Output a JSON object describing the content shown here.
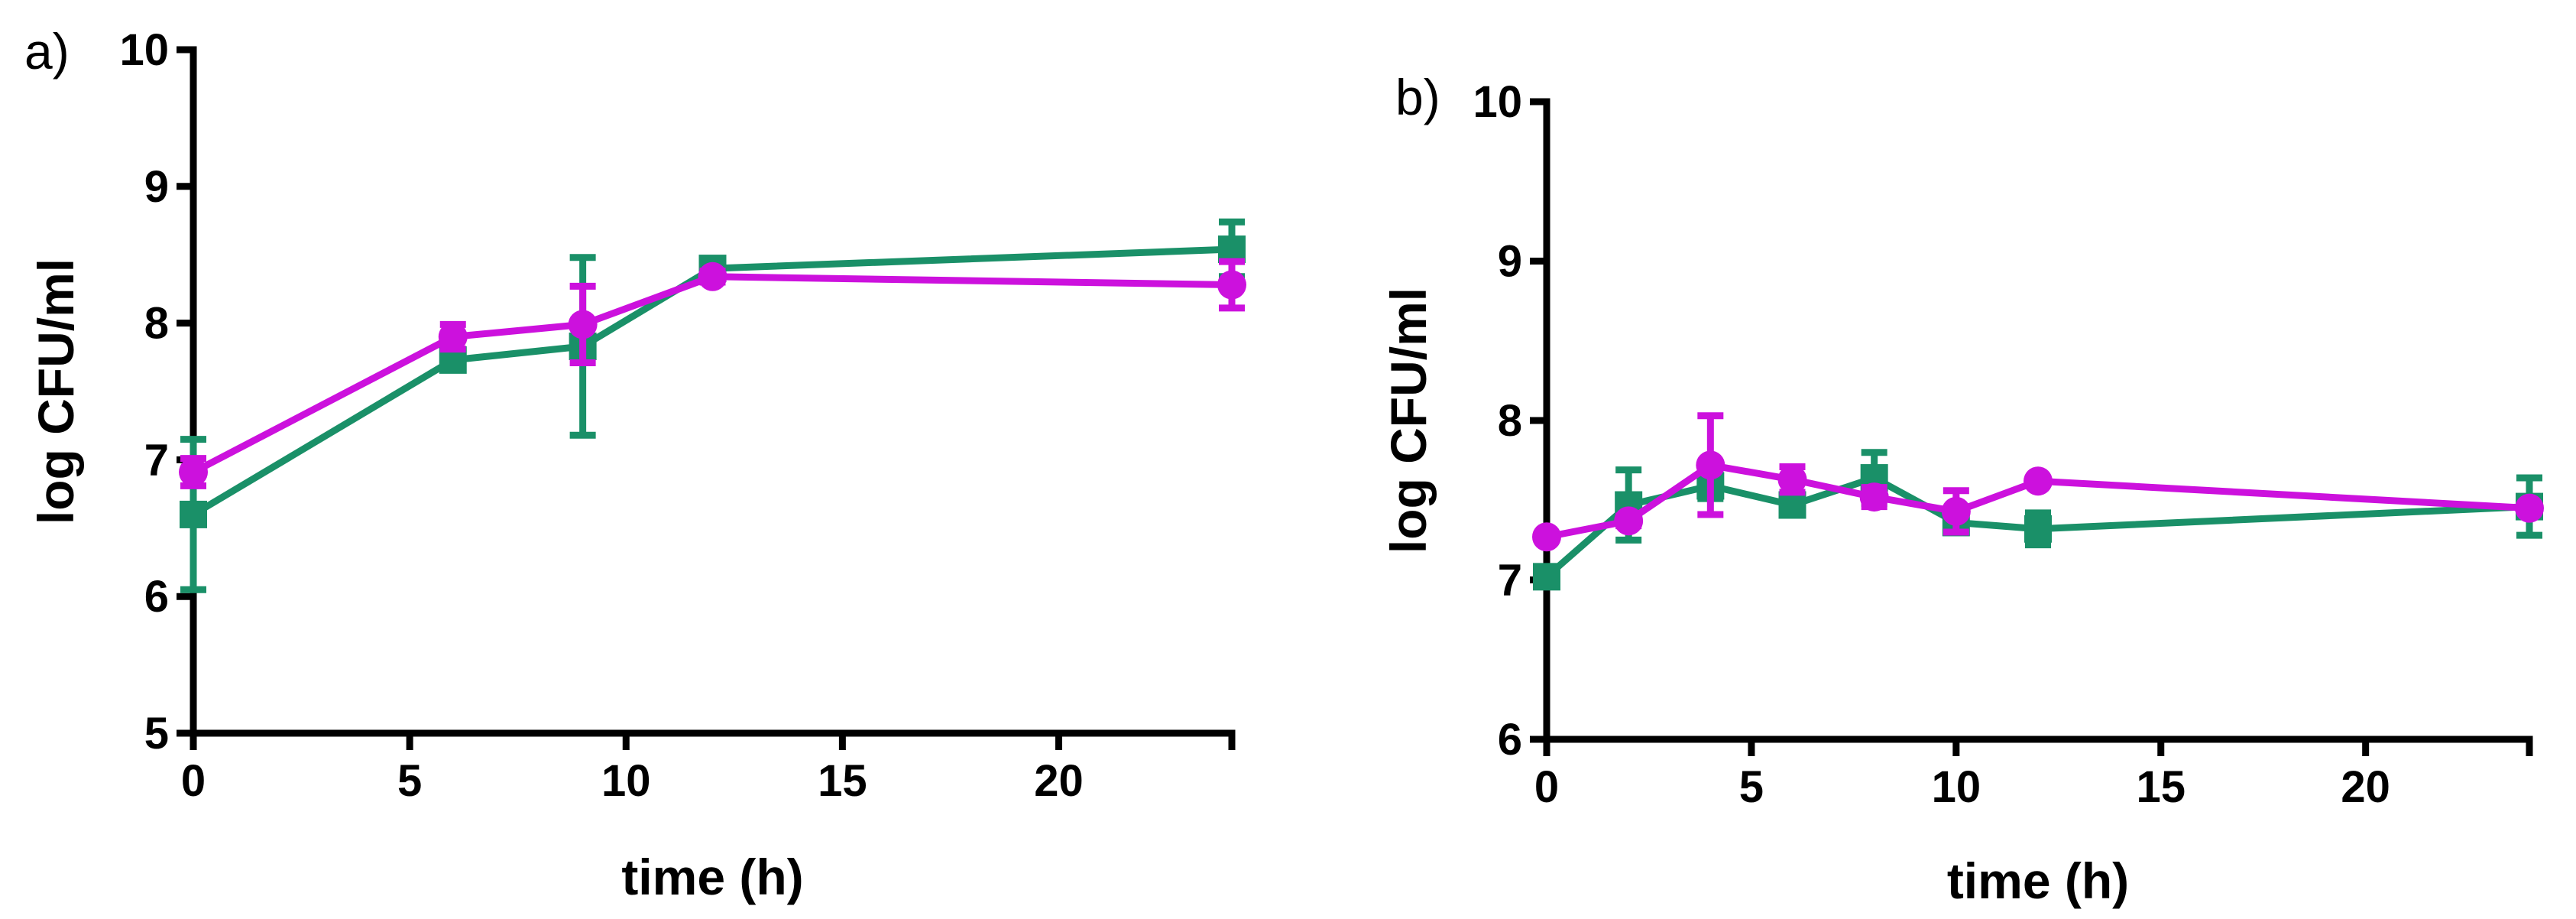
{
  "colors": {
    "green": "#1a9068",
    "magenta": "#cc11dd",
    "axis": "#000000"
  },
  "chart_data": [
    {
      "panel": "a)",
      "type": "line",
      "xlabel": "time (h)",
      "ylabel": "log CFU/ml",
      "xlim": [
        0,
        24
      ],
      "ylim": [
        5,
        10
      ],
      "xticks": [
        0,
        5,
        10,
        15,
        20
      ],
      "yticks": [
        5,
        6,
        7,
        8,
        9,
        10
      ],
      "series": [
        {
          "name": "green squares",
          "marker": "square",
          "color": "#1a9068",
          "x": [
            0,
            6,
            9,
            12,
            24
          ],
          "y": [
            6.6,
            7.73,
            7.83,
            8.4,
            8.54
          ],
          "err": [
            0.55,
            0.06,
            0.65,
            0.05,
            0.2
          ]
        },
        {
          "name": "magenta circles",
          "marker": "circle",
          "color": "#cc11dd",
          "x": [
            0,
            6,
            9,
            12,
            24
          ],
          "y": [
            6.91,
            7.9,
            7.99,
            8.34,
            8.28
          ],
          "err": [
            0.1,
            0.09,
            0.28,
            0.04,
            0.17
          ]
        }
      ]
    },
    {
      "panel": "b)",
      "type": "line",
      "xlabel": "time (h)",
      "ylabel": "log CFU/ml",
      "xlim": [
        0,
        24
      ],
      "ylim": [
        6,
        10
      ],
      "xticks": [
        0,
        5,
        10,
        15,
        20
      ],
      "yticks": [
        6,
        7,
        8,
        9,
        10
      ],
      "series": [
        {
          "name": "green squares",
          "marker": "square",
          "color": "#1a9068",
          "x": [
            0,
            2,
            4,
            6,
            8,
            10,
            12,
            24
          ],
          "y": [
            7.02,
            7.47,
            7.59,
            7.47,
            7.64,
            7.36,
            7.32,
            7.46
          ],
          "err": [
            0.05,
            0.22,
            0.08,
            0.06,
            0.16,
            0.06,
            0.1,
            0.18
          ]
        },
        {
          "name": "magenta circles",
          "marker": "circle",
          "color": "#cc11dd",
          "x": [
            0,
            2,
            4,
            6,
            8,
            10,
            12,
            24
          ],
          "y": [
            7.27,
            7.37,
            7.72,
            7.63,
            7.52,
            7.43,
            7.62,
            7.45
          ],
          "err": [
            0.02,
            0.03,
            0.31,
            0.08,
            0.06,
            0.13,
            0.02,
            0.02
          ]
        }
      ]
    }
  ]
}
